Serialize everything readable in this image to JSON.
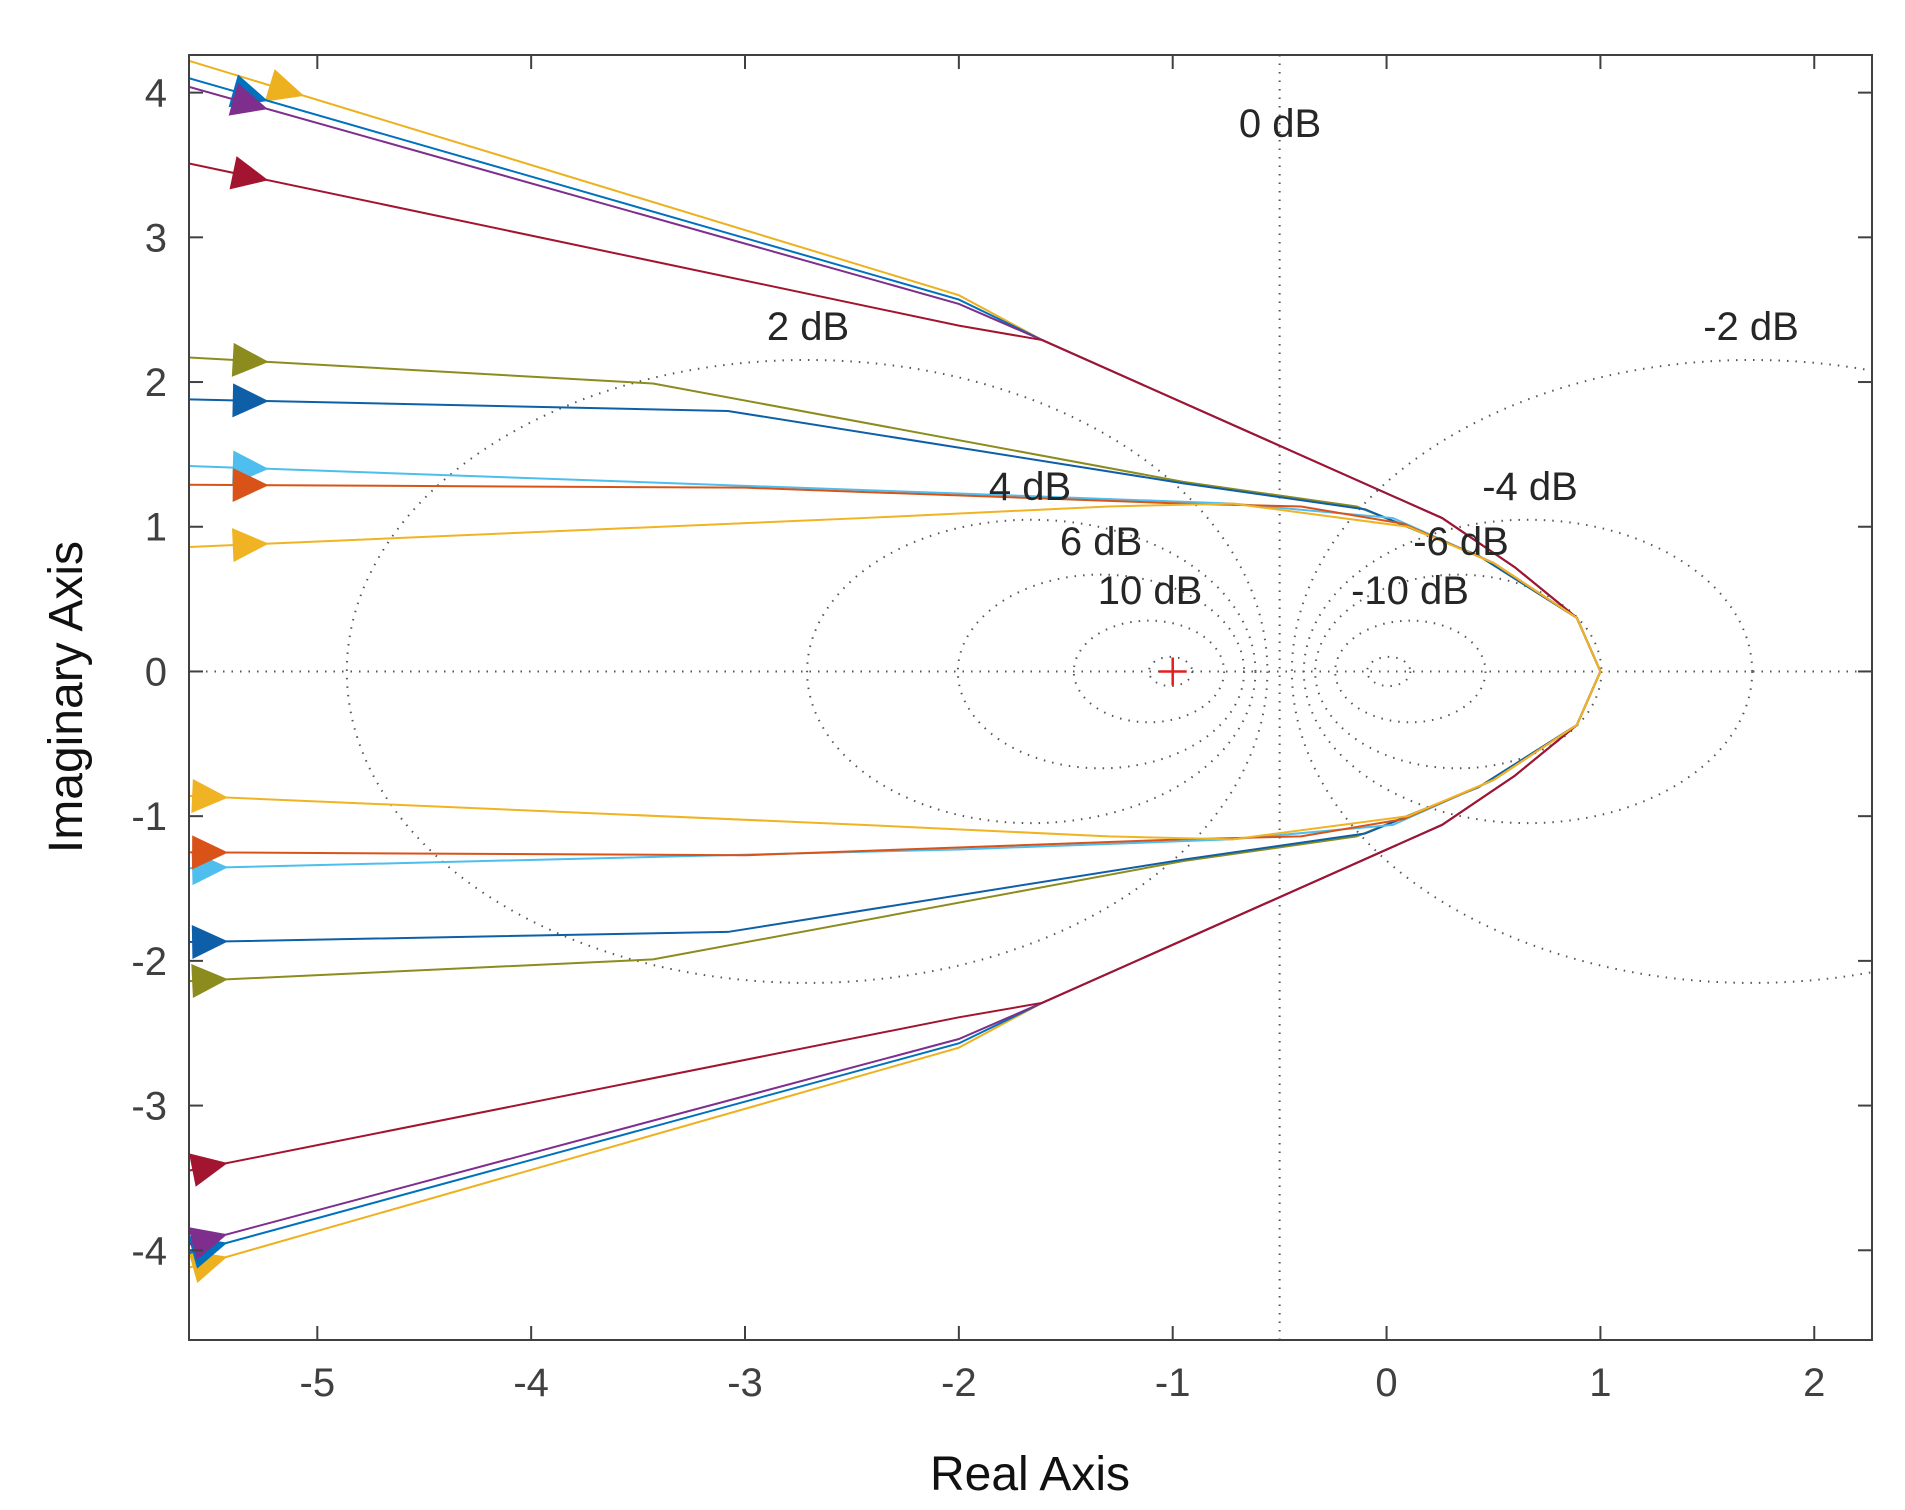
{
  "chart_data": {
    "type": "line",
    "title": "",
    "xlabel": "Real Axis",
    "ylabel": "Imaginary Axis",
    "xlim": [
      -5.6,
      2.27
    ],
    "ylim": [
      -4.62,
      4.26
    ],
    "xticks": [
      "-5",
      "-4",
      "-3",
      "-2",
      "-1",
      "0",
      "1",
      "2"
    ],
    "yticks": [
      "4",
      "3",
      "2",
      "1",
      "0",
      "-1",
      "-2",
      "-3",
      "-4"
    ],
    "grid": "M-circles (constant closed-loop magnitude)",
    "grid_labels": [
      "0 dB",
      "2 dB",
      "-2 dB",
      "4 dB",
      "-4 dB",
      "6 dB",
      "-6 dB",
      "10 dB",
      "-10 dB"
    ],
    "critical_point": [
      -1,
      0
    ],
    "critical_point_color": "#e02020",
    "series": [
      {
        "color": "#EDB120",
        "upper": [
          [
            -5.6,
            4.22
          ],
          [
            -2,
            2.6
          ],
          [
            -1.61,
            2.29
          ],
          [
            0.26,
            1.06
          ],
          [
            0.6,
            0.72
          ],
          [
            0.89,
            0.37
          ],
          [
            1,
            0
          ]
        ],
        "lower": [
          [
            -5.6,
            -4.12
          ],
          [
            -2,
            -2.6
          ],
          [
            -1.61,
            -2.29
          ],
          [
            0.26,
            -1.06
          ],
          [
            0.6,
            -0.72
          ],
          [
            0.89,
            -0.37
          ],
          [
            1,
            0
          ]
        ],
        "arrow_upper_x": -5.16,
        "arrow_lower_x": -5.52
      },
      {
        "color": "#0072BD",
        "upper": [
          [
            -5.6,
            4.1
          ],
          [
            -2,
            2.57
          ],
          [
            -1.61,
            2.29
          ],
          [
            0.26,
            1.06
          ],
          [
            0.6,
            0.72
          ],
          [
            0.89,
            0.37
          ],
          [
            1,
            0
          ]
        ],
        "lower": [
          [
            -5.6,
            -4.02
          ],
          [
            -2,
            -2.57
          ],
          [
            -1.61,
            -2.29
          ],
          [
            0.26,
            -1.06
          ],
          [
            0.6,
            -0.72
          ],
          [
            0.89,
            -0.37
          ],
          [
            1,
            0
          ]
        ],
        "arrow_upper_x": -5.33,
        "arrow_lower_x": -5.52
      },
      {
        "color": "#7E2F8E",
        "upper": [
          [
            -5.6,
            4.04
          ],
          [
            -2,
            2.54
          ],
          [
            -1.61,
            2.29
          ],
          [
            0.26,
            1.06
          ],
          [
            0.6,
            0.72
          ],
          [
            0.89,
            0.37
          ],
          [
            1,
            0
          ]
        ],
        "lower": [
          [
            -5.6,
            -3.96
          ],
          [
            -2,
            -2.54
          ],
          [
            -1.61,
            -2.29
          ],
          [
            0.26,
            -1.06
          ],
          [
            0.6,
            -0.72
          ],
          [
            0.89,
            -0.37
          ],
          [
            1,
            0
          ]
        ],
        "arrow_upper_x": -5.33,
        "arrow_lower_x": -5.52
      },
      {
        "color": "#A2142F",
        "upper": [
          [
            -5.6,
            3.51
          ],
          [
            -2,
            2.39
          ],
          [
            -1.61,
            2.29
          ],
          [
            0.26,
            1.06
          ],
          [
            0.6,
            0.72
          ],
          [
            0.89,
            0.37
          ],
          [
            1,
            0
          ]
        ],
        "lower": [
          [
            -5.6,
            -3.45
          ],
          [
            -2,
            -2.39
          ],
          [
            -1.61,
            -2.29
          ],
          [
            0.26,
            -1.06
          ],
          [
            0.6,
            -0.72
          ],
          [
            0.89,
            -0.37
          ],
          [
            1,
            0
          ]
        ],
        "arrow_upper_x": -5.33,
        "arrow_lower_x": -5.52
      },
      {
        "color": "#8C8C1E",
        "upper": [
          [
            -5.6,
            2.17
          ],
          [
            -3.43,
            1.99
          ],
          [
            -0.95,
            1.31
          ],
          [
            -0.14,
            1.14
          ],
          [
            0.43,
            0.8
          ],
          [
            0.89,
            0.37
          ],
          [
            1,
            0
          ]
        ],
        "lower": [
          [
            -5.6,
            -2.14
          ],
          [
            -3.43,
            -1.99
          ],
          [
            -0.95,
            -1.31
          ],
          [
            -0.14,
            -1.14
          ],
          [
            0.43,
            -0.8
          ],
          [
            0.89,
            -0.37
          ],
          [
            1,
            0
          ]
        ],
        "arrow_upper_x": -5.33,
        "arrow_lower_x": -5.52
      },
      {
        "color": "#0E5FA8",
        "upper": [
          [
            -5.6,
            1.88
          ],
          [
            -3.08,
            1.8
          ],
          [
            -0.95,
            1.3
          ],
          [
            -0.1,
            1.12
          ],
          [
            0.43,
            0.8
          ],
          [
            0.89,
            0.37
          ],
          [
            1,
            0
          ]
        ],
        "lower": [
          [
            -5.6,
            -1.87
          ],
          [
            -3.08,
            -1.8
          ],
          [
            -0.95,
            -1.3
          ],
          [
            -0.1,
            -1.12
          ],
          [
            0.43,
            -0.8
          ],
          [
            0.89,
            -0.37
          ],
          [
            1,
            0
          ]
        ],
        "arrow_upper_x": -5.33,
        "arrow_lower_x": -5.52
      },
      {
        "color": "#4DBEEE",
        "upper": [
          [
            -5.6,
            1.42
          ],
          [
            -2,
            1.23
          ],
          [
            -0.72,
            1.16
          ],
          [
            0.03,
            1.06
          ],
          [
            0.5,
            0.75
          ],
          [
            0.89,
            0.37
          ],
          [
            1,
            0
          ]
        ],
        "lower": [
          [
            -5.6,
            -1.36
          ],
          [
            -2,
            -1.23
          ],
          [
            -0.72,
            -1.16
          ],
          [
            0.03,
            -1.06
          ],
          [
            0.5,
            -0.75
          ],
          [
            0.89,
            -0.37
          ],
          [
            1,
            0
          ]
        ],
        "arrow_upper_x": -5.33,
        "arrow_lower_x": -5.52
      },
      {
        "color": "#D95319",
        "upper": [
          [
            -5.6,
            1.29
          ],
          [
            -3,
            1.27
          ],
          [
            -0.95,
            1.16
          ],
          [
            -0.4,
            1.14
          ],
          [
            0.08,
            1.02
          ],
          [
            0.5,
            0.75
          ],
          [
            0.89,
            0.37
          ],
          [
            1,
            0
          ]
        ],
        "lower": [
          [
            -5.6,
            -1.25
          ],
          [
            -3,
            -1.27
          ],
          [
            -0.95,
            -1.16
          ],
          [
            -0.4,
            -1.14
          ],
          [
            0.08,
            -1.02
          ],
          [
            0.5,
            -0.75
          ],
          [
            0.89,
            -0.37
          ],
          [
            1,
            0
          ]
        ],
        "arrow_upper_x": -5.33,
        "arrow_lower_x": -5.52
      },
      {
        "color": "#F0B323",
        "upper": [
          [
            -5.6,
            0.86
          ],
          [
            -2.45,
            1.06
          ],
          [
            -1.3,
            1.14
          ],
          [
            -0.72,
            1.16
          ],
          [
            0.1,
            1.0
          ],
          [
            0.5,
            0.75
          ],
          [
            0.89,
            0.37
          ],
          [
            1,
            0
          ]
        ],
        "lower": [
          [
            -5.6,
            -0.86
          ],
          [
            -2.45,
            -1.06
          ],
          [
            -1.3,
            -1.14
          ],
          [
            -0.72,
            -1.16
          ],
          [
            0.1,
            -1.0
          ],
          [
            0.5,
            -0.75
          ],
          [
            0.89,
            -0.37
          ],
          [
            1,
            0
          ]
        ],
        "arrow_upper_x": -5.33,
        "arrow_lower_x": -5.52
      }
    ]
  }
}
